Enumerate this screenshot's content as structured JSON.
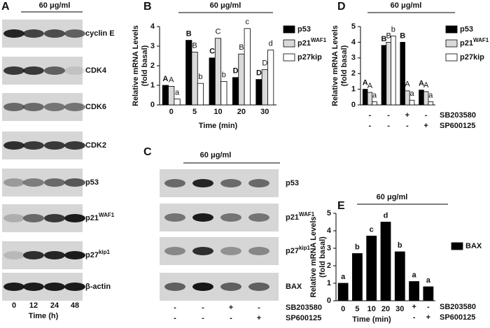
{
  "panels": {
    "A": {
      "panel": "A",
      "title": "60 μg/ml",
      "x_label": "Time (h)",
      "lanes": [
        "0",
        "12",
        "24",
        "48"
      ],
      "rows": [
        {
          "label": "cyclin E"
        },
        {
          "label": "CDK4"
        },
        {
          "label": "CDK6"
        },
        {
          "label": "CDK2"
        },
        {
          "label": "p53"
        },
        {
          "label": "p21",
          "sup": "WAF1"
        },
        {
          "label": "p27",
          "sup": "kip1"
        },
        {
          "label": "β-actin"
        }
      ]
    },
    "C": {
      "panel": "C",
      "title": "60 μg/ml",
      "rows": [
        {
          "label": "p53"
        },
        {
          "label": "p21",
          "sup": "WAF1"
        },
        {
          "label": "p27",
          "sup": "kip1"
        },
        {
          "label": "BAX"
        }
      ],
      "treatments": [
        {
          "name": "SB203580",
          "signs": [
            "-",
            "-",
            "+",
            "-"
          ]
        },
        {
          "name": "SP600125",
          "signs": [
            "-",
            "-",
            "-",
            "+"
          ]
        }
      ]
    }
  },
  "chart_data": [
    {
      "type": "bar",
      "panel": "B",
      "title": "60 μg/ml",
      "y_label": "Relative mRNA Levels",
      "y_label_2": "(fold basal)",
      "x_label": "Time (min)",
      "categories": [
        "0",
        "5",
        "10",
        "20",
        "30"
      ],
      "ylim": [
        0,
        4
      ],
      "yticks": [
        0,
        1,
        2,
        3,
        4
      ],
      "series": [
        {
          "name": "p53",
          "color": "#000000",
          "values": [
            1.0,
            3.3,
            2.4,
            1.4,
            1.3
          ],
          "letters": [
            "A",
            "B",
            "C",
            "D",
            "D"
          ]
        },
        {
          "name": "p21",
          "name_sup": "WAF1",
          "color": "#d9d9d9",
          "values": [
            0.95,
            2.7,
            3.4,
            2.6,
            1.8
          ],
          "letters": [
            "A",
            "B",
            "C",
            "B",
            "D"
          ]
        },
        {
          "name": "p27kip",
          "color": "#ffffff",
          "values": [
            0.3,
            1.1,
            1.2,
            3.9,
            2.8
          ],
          "letters": [
            "a",
            "b",
            "b",
            "c",
            "d"
          ]
        }
      ]
    },
    {
      "type": "bar",
      "panel": "D",
      "title": "60 μg/ml",
      "y_label": "Relative mRNA Levels",
      "y_label_2": "(fold basal)",
      "categories": [
        null,
        null,
        null,
        null
      ],
      "ylim": [
        0,
        5
      ],
      "yticks": [
        0,
        1,
        2,
        3,
        4,
        5
      ],
      "series": [
        {
          "name": "p53",
          "color": "#000000",
          "values": [
            1.0,
            3.8,
            4.0,
            0.95
          ],
          "letters": [
            "A",
            "B",
            "B",
            "A"
          ]
        },
        {
          "name": "p21",
          "name_sup": "WAF1",
          "color": "#d9d9d9",
          "values": [
            0.8,
            4.0,
            0.9,
            0.85
          ],
          "letters": [
            "A",
            "B",
            "A",
            "A"
          ]
        },
        {
          "name": "p27kip",
          "color": "#ffffff",
          "values": [
            0.2,
            4.4,
            0.3,
            0.2
          ],
          "letters": [
            "a",
            "b",
            "a",
            "a"
          ]
        }
      ],
      "treatments": [
        {
          "name": "SB203580",
          "signs": [
            "-",
            "-",
            "+",
            "-"
          ]
        },
        {
          "name": "SP600125",
          "signs": [
            "-",
            "-",
            "-",
            "+"
          ]
        }
      ]
    },
    {
      "type": "bar",
      "panel": "E",
      "title": "60 μg/ml",
      "y_label": "Relative mRNA Levels",
      "y_label_2": "(fold basal)",
      "x_label": "Time (min)",
      "categories": [
        "0",
        "5",
        "10",
        "20",
        "30",
        null,
        null
      ],
      "ylim": [
        0,
        5
      ],
      "yticks": [
        0,
        1,
        2,
        3,
        4,
        5
      ],
      "series": [
        {
          "name": "BAX",
          "color": "#000000",
          "values": [
            1.0,
            2.7,
            3.7,
            4.5,
            2.8,
            1.1,
            0.8
          ],
          "letters": [
            "a",
            "b",
            "c",
            "d",
            "b",
            "a",
            "a"
          ]
        }
      ],
      "treatments": [
        {
          "name": "SB203580",
          "signs": [
            null,
            null,
            null,
            null,
            null,
            "+",
            "-"
          ]
        },
        {
          "name": "SP600125",
          "signs": [
            null,
            null,
            null,
            null,
            null,
            "-",
            "+"
          ]
        }
      ]
    }
  ]
}
